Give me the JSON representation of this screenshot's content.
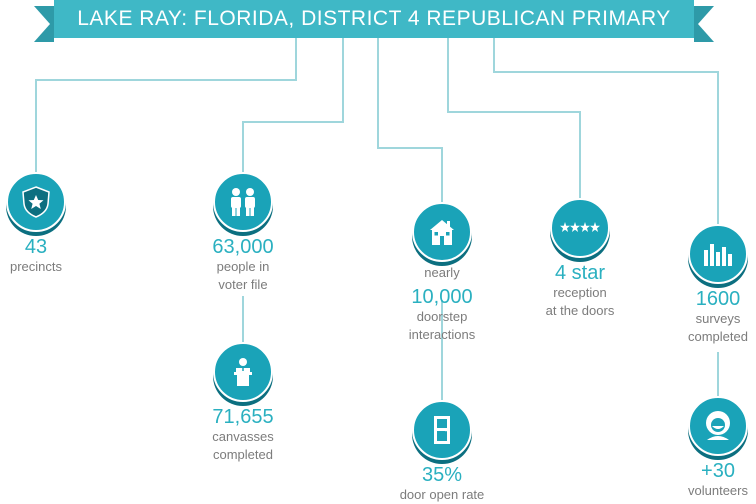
{
  "banner": {
    "title": "LAKE RAY: FLORIDA, DISTRICT 4 REPUBLICAN PRIMARY"
  },
  "colors": {
    "accent": "#3fb8c6",
    "icon_fill": "#1aa3b8",
    "icon_shadow": "#0c6f80",
    "text": "#7c7c7c",
    "number": "#2ab0c0"
  },
  "stats": {
    "precincts": {
      "icon": "shield-star-icon",
      "value": "43",
      "label": "precincts"
    },
    "voter_file": {
      "icon": "people-icon",
      "value": "63,000",
      "label_line1": "people in",
      "label_line2": "voter file"
    },
    "canvasses": {
      "icon": "speaker-podium-icon",
      "value": "71,655",
      "label_line1": "canvasses",
      "label_line2": "completed"
    },
    "doorstep": {
      "icon": "house-icon",
      "prefix": "nearly",
      "value": "10,000",
      "label_line1": "doorstep",
      "label_line2": "interactions"
    },
    "door_open": {
      "icon": "door-icon",
      "value": "35%",
      "label": "door open rate"
    },
    "reception": {
      "icon": "four-stars-icon",
      "value": "4 star",
      "label_line1": "reception",
      "label_line2": "at the doors"
    },
    "surveys": {
      "icon": "bar-chart-icon",
      "value": "1600",
      "label_line1": "surveys",
      "label_line2": "completed"
    },
    "volunteers": {
      "icon": "volunteer-face-icon",
      "value": "+30",
      "label": "volunteers"
    }
  }
}
